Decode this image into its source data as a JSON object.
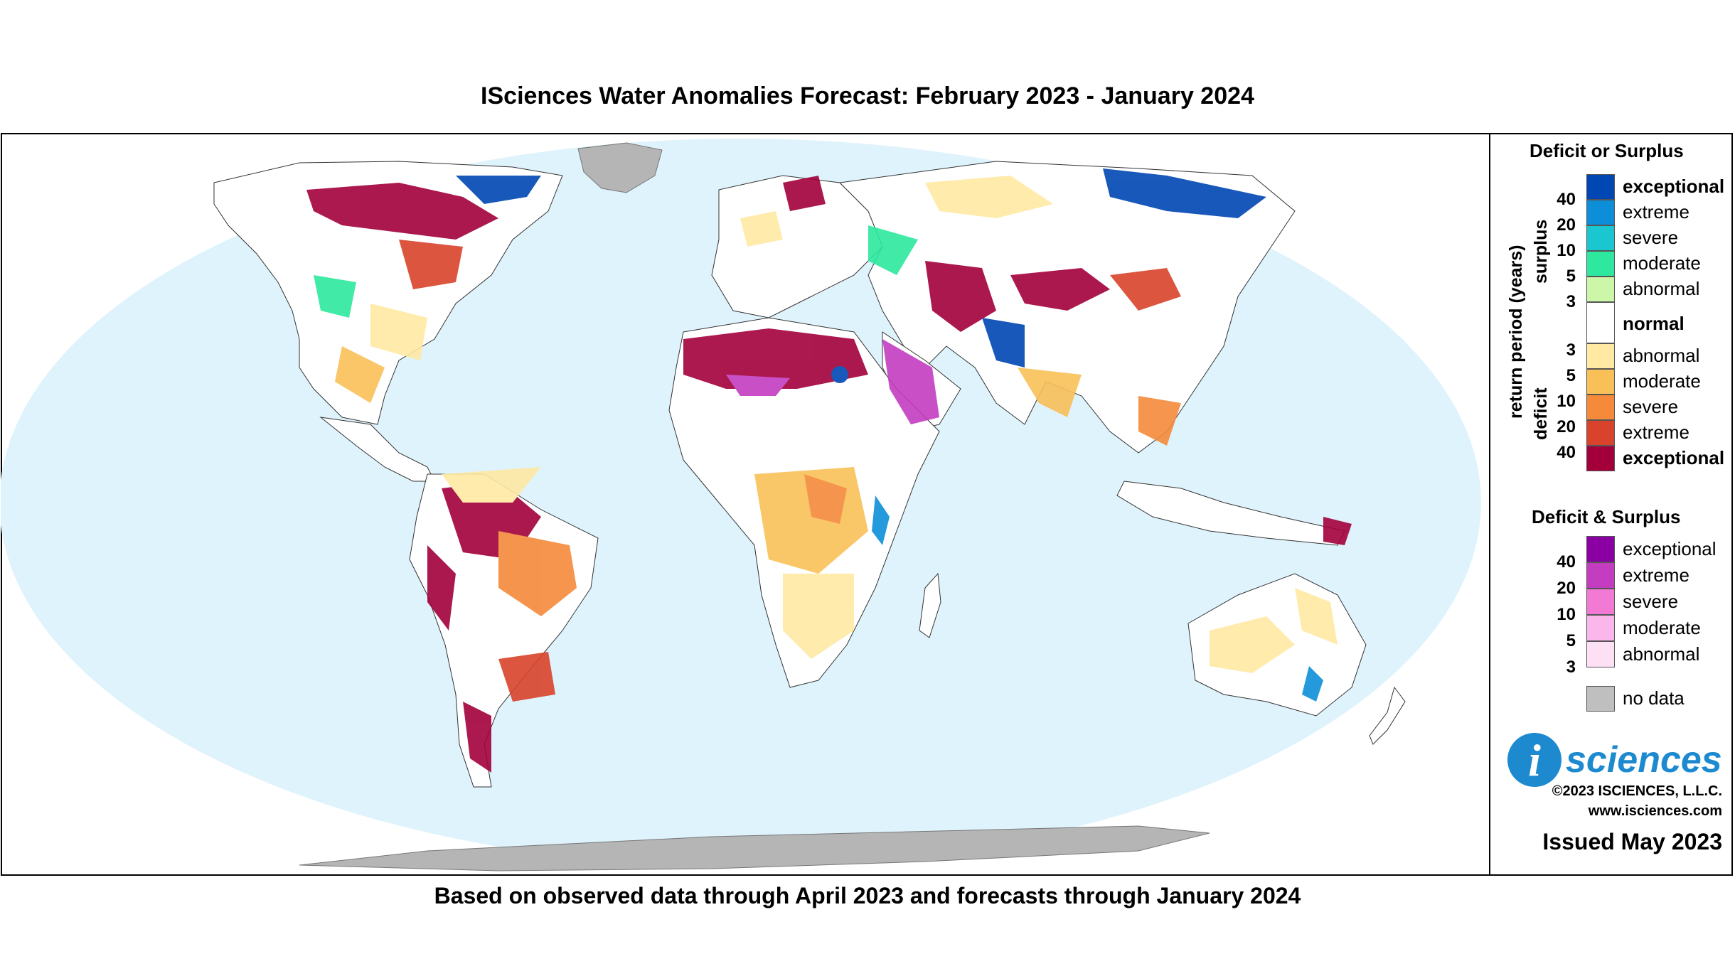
{
  "title": "ISciences Water Anomalies Forecast: February 2023 - January 2024",
  "subtitle": "Based on observed data through April 2023 and forecasts through January 2024",
  "legend": {
    "single": {
      "heading": "Deficit or Surplus",
      "axis_label": "return period (years)",
      "surplus_label": "surplus",
      "deficit_label": "deficit",
      "surplus": [
        {
          "label": "exceptional",
          "color": "#0047b3"
        },
        {
          "label": "extreme",
          "color": "#0d8ed9"
        },
        {
          "label": "severe",
          "color": "#1ac6cf"
        },
        {
          "label": "moderate",
          "color": "#2ee89f"
        },
        {
          "label": "abnormal",
          "color": "#ccf7a8"
        }
      ],
      "normal_label": "normal",
      "deficit": [
        {
          "label": "abnormal",
          "color": "#ffe9a3"
        },
        {
          "label": "moderate",
          "color": "#f9c058"
        },
        {
          "label": "severe",
          "color": "#f58a3a"
        },
        {
          "label": "extreme",
          "color": "#d9432b"
        },
        {
          "label": "exceptional",
          "color": "#a3003b"
        }
      ],
      "surplus_ticks": [
        "40",
        "20",
        "10",
        "5",
        "3"
      ],
      "deficit_ticks": [
        "3",
        "5",
        "10",
        "20",
        "40"
      ]
    },
    "both": {
      "heading": "Deficit & Surplus",
      "items": [
        {
          "label": "exceptional",
          "color": "#8a00a3"
        },
        {
          "label": "extreme",
          "color": "#c43cc0"
        },
        {
          "label": "severe",
          "color": "#f27ad4"
        },
        {
          "label": "moderate",
          "color": "#fbb7ec"
        },
        {
          "label": "abnormal",
          "color": "#fde0f4"
        }
      ],
      "ticks": [
        "40",
        "20",
        "10",
        "5",
        "3"
      ]
    },
    "no_data": {
      "label": "no data",
      "color": "#bfbfbf"
    }
  },
  "brand": {
    "logo_letter": "i",
    "logo_text": "sciences",
    "copyright": "©2023 ISCIENCES, L.L.C.",
    "website": "www.isciences.com",
    "issued": "Issued May 2023"
  },
  "colors": {
    "ocean": "#dff3fc",
    "land": "#ffffff",
    "nodata": "#b5b5b5",
    "logo_blue": "#1d8ad0"
  }
}
